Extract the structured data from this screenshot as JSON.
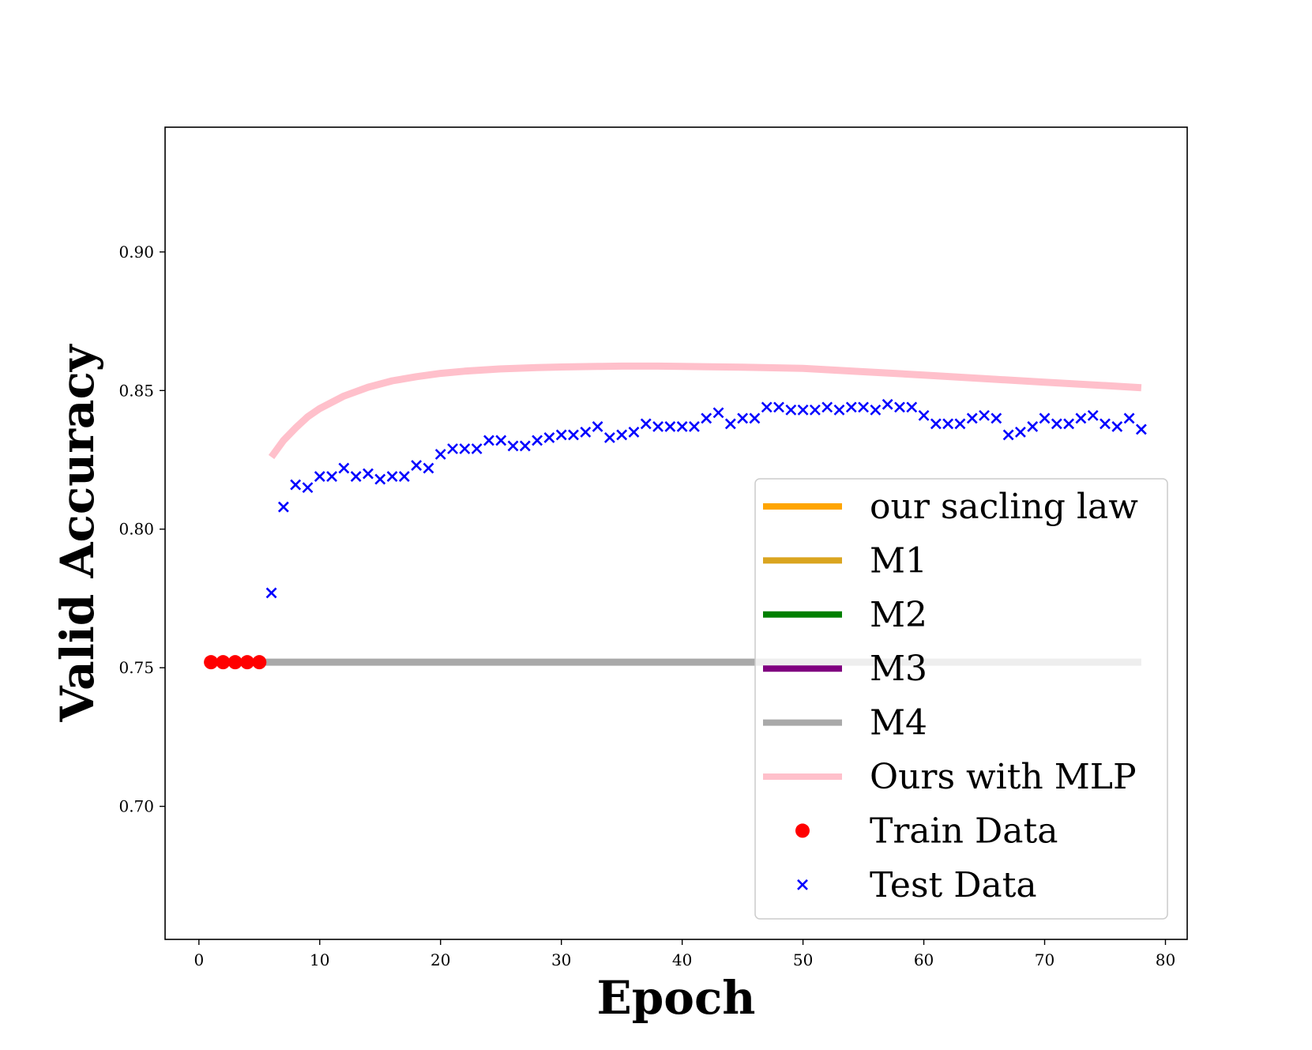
{
  "chart_data": {
    "type": "line",
    "title": "",
    "xlabel": "Epoch",
    "ylabel": "Valid Accuracy",
    "xlim": [
      -2.8,
      81.8
    ],
    "ylim": [
      0.652,
      0.945
    ],
    "xticks": [
      0,
      10,
      20,
      30,
      40,
      50,
      60,
      70,
      80
    ],
    "yticks": [
      0.7,
      0.75,
      0.8,
      0.85,
      0.9
    ],
    "xtick_labels": [
      "0",
      "10",
      "20",
      "30",
      "40",
      "50",
      "60",
      "70",
      "80"
    ],
    "ytick_labels": [
      "0.70",
      "0.75",
      "0.80",
      "0.85",
      "0.90"
    ],
    "grid": false,
    "legend_position": "lower-right",
    "series": [
      {
        "name": "our sacling law",
        "kind": "line",
        "color": "#FFA500",
        "x": [],
        "y": []
      },
      {
        "name": "M1",
        "kind": "line",
        "color": "#DAA520",
        "x": [],
        "y": []
      },
      {
        "name": "M2",
        "kind": "line",
        "color": "#008000",
        "x": [],
        "y": []
      },
      {
        "name": "M3",
        "kind": "line",
        "color": "#800080",
        "x": [],
        "y": []
      },
      {
        "name": "M4",
        "kind": "line",
        "color": "#A9A9A9",
        "x": [
          5,
          78
        ],
        "y": [
          0.752,
          0.752
        ]
      },
      {
        "name": "Ours with MLP",
        "kind": "line",
        "color": "#FFC0CB",
        "x": [
          6,
          7,
          8,
          9,
          10,
          12,
          14,
          16,
          18,
          20,
          22,
          25,
          28,
          30,
          33,
          35,
          38,
          40,
          45,
          50,
          55,
          60,
          65,
          70,
          75,
          78
        ],
        "y": [
          0.826,
          0.832,
          0.8365,
          0.8405,
          0.8435,
          0.848,
          0.8512,
          0.8535,
          0.855,
          0.8562,
          0.857,
          0.8578,
          0.8583,
          0.8585,
          0.8587,
          0.8588,
          0.8588,
          0.8587,
          0.8584,
          0.858,
          0.8568,
          0.8556,
          0.8543,
          0.853,
          0.8518,
          0.851
        ]
      },
      {
        "name": "Train Data",
        "kind": "scatter",
        "marker": "circle",
        "color": "#FF0000",
        "x": [
          1,
          2,
          3,
          4,
          5
        ],
        "y": [
          0.752,
          0.752,
          0.752,
          0.752,
          0.752
        ]
      },
      {
        "name": "Test Data",
        "kind": "scatter",
        "marker": "x",
        "color": "#0000FF",
        "x": [
          6,
          7,
          8,
          9,
          10,
          11,
          12,
          13,
          14,
          15,
          16,
          17,
          18,
          19,
          20,
          21,
          22,
          23,
          24,
          25,
          26,
          27,
          28,
          29,
          30,
          31,
          32,
          33,
          34,
          35,
          36,
          37,
          38,
          39,
          40,
          41,
          42,
          43,
          44,
          45,
          46,
          47,
          48,
          49,
          50,
          51,
          52,
          53,
          54,
          55,
          56,
          57,
          58,
          59,
          60,
          61,
          62,
          63,
          64,
          65,
          66,
          67,
          68,
          69,
          70,
          71,
          72,
          73,
          74,
          75,
          76,
          77,
          78
        ],
        "y": [
          0.777,
          0.808,
          0.816,
          0.815,
          0.819,
          0.819,
          0.822,
          0.819,
          0.82,
          0.818,
          0.819,
          0.819,
          0.823,
          0.822,
          0.827,
          0.829,
          0.829,
          0.829,
          0.832,
          0.832,
          0.83,
          0.83,
          0.832,
          0.833,
          0.834,
          0.834,
          0.835,
          0.837,
          0.833,
          0.834,
          0.835,
          0.838,
          0.837,
          0.837,
          0.837,
          0.837,
          0.84,
          0.842,
          0.838,
          0.84,
          0.84,
          0.844,
          0.844,
          0.843,
          0.843,
          0.843,
          0.844,
          0.843,
          0.844,
          0.844,
          0.843,
          0.845,
          0.844,
          0.844,
          0.841,
          0.838,
          0.838,
          0.838,
          0.84,
          0.841,
          0.84,
          0.834,
          0.835,
          0.837,
          0.84,
          0.838,
          0.838,
          0.84,
          0.841,
          0.838,
          0.837,
          0.84,
          0.836
        ]
      }
    ]
  }
}
